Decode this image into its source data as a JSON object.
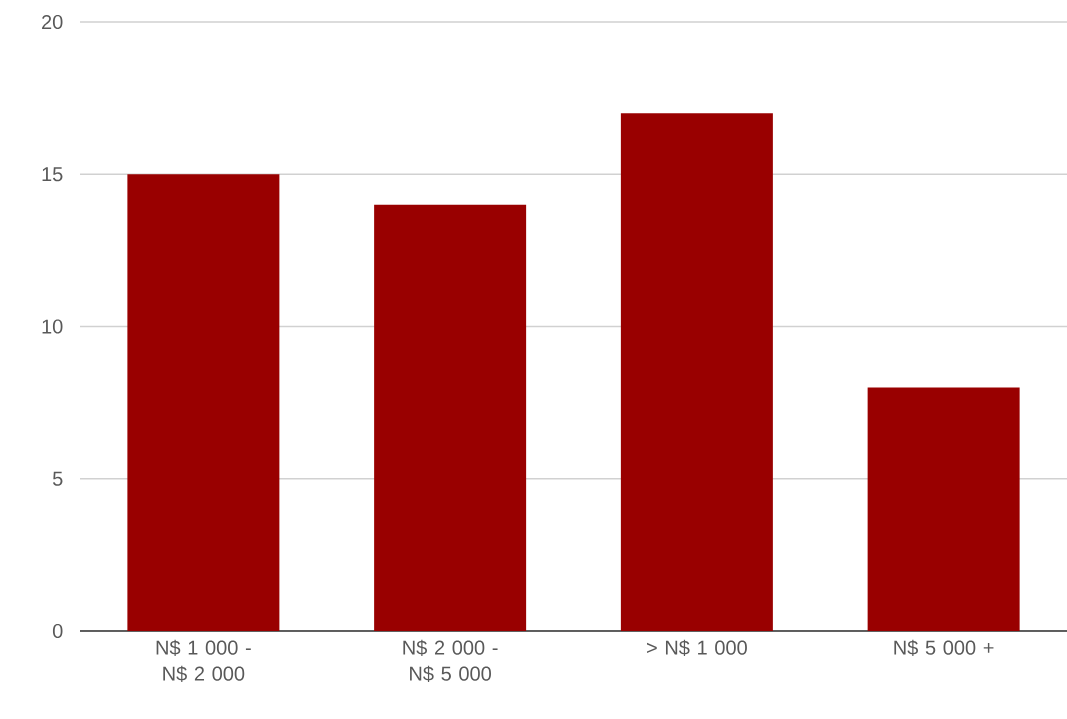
{
  "chart_data": {
    "type": "bar",
    "categories": [
      "N$ 1 000 - N$ 2 000",
      "N$ 2 000 - N$ 5 000",
      "> N$ 1 000",
      "N$ 5 000 +"
    ],
    "values": [
      15,
      14,
      17,
      8
    ],
    "color": "#990000",
    "ylim": [
      0,
      20
    ],
    "yticks": [
      0,
      5,
      10,
      15,
      20
    ],
    "grid": "y"
  }
}
